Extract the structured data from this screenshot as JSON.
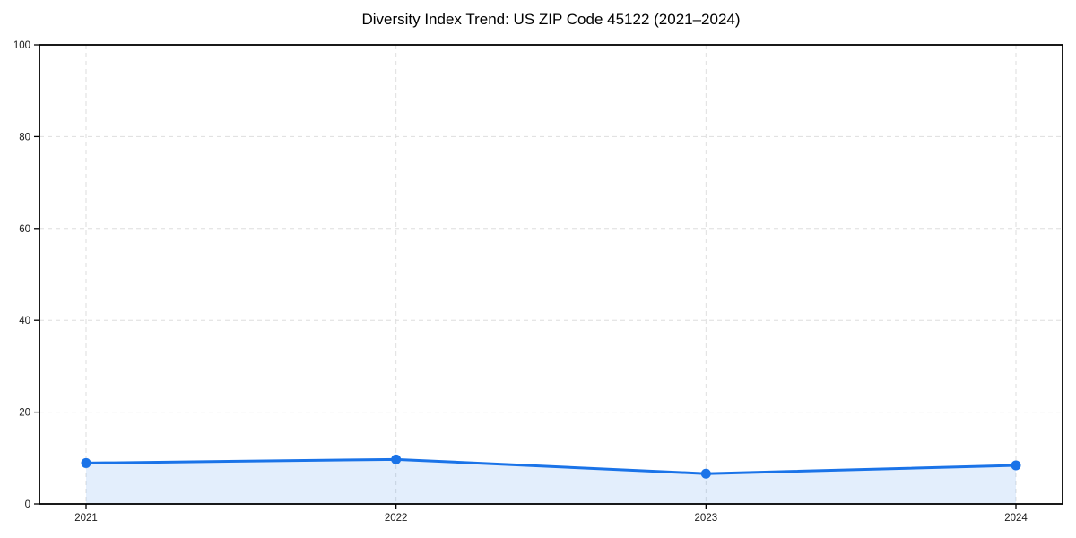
{
  "chart_data": {
    "type": "line",
    "title": "Diversity Index Trend: US ZIP Code 45122 (2021–2024)",
    "categories": [
      "2021",
      "2022",
      "2023",
      "2024"
    ],
    "series": [
      {
        "name": "Diversity Index",
        "values": [
          8.9,
          9.7,
          6.6,
          8.4
        ]
      }
    ],
    "xlabel": "",
    "ylabel": "",
    "ylim": [
      0,
      100
    ],
    "yticks": [
      0,
      20,
      40,
      60,
      80,
      100
    ],
    "grid": true,
    "grid_style": "dashed",
    "legend": false,
    "area_fill": true,
    "marker": "circle",
    "colors": {
      "line": "#1a73e8",
      "marker": "#1a73e8",
      "area": "rgba(26,115,232,0.12)",
      "grid": "#dedede",
      "spine": "#000000",
      "tick_label": "#1a1a1a",
      "background": "#ffffff"
    }
  }
}
